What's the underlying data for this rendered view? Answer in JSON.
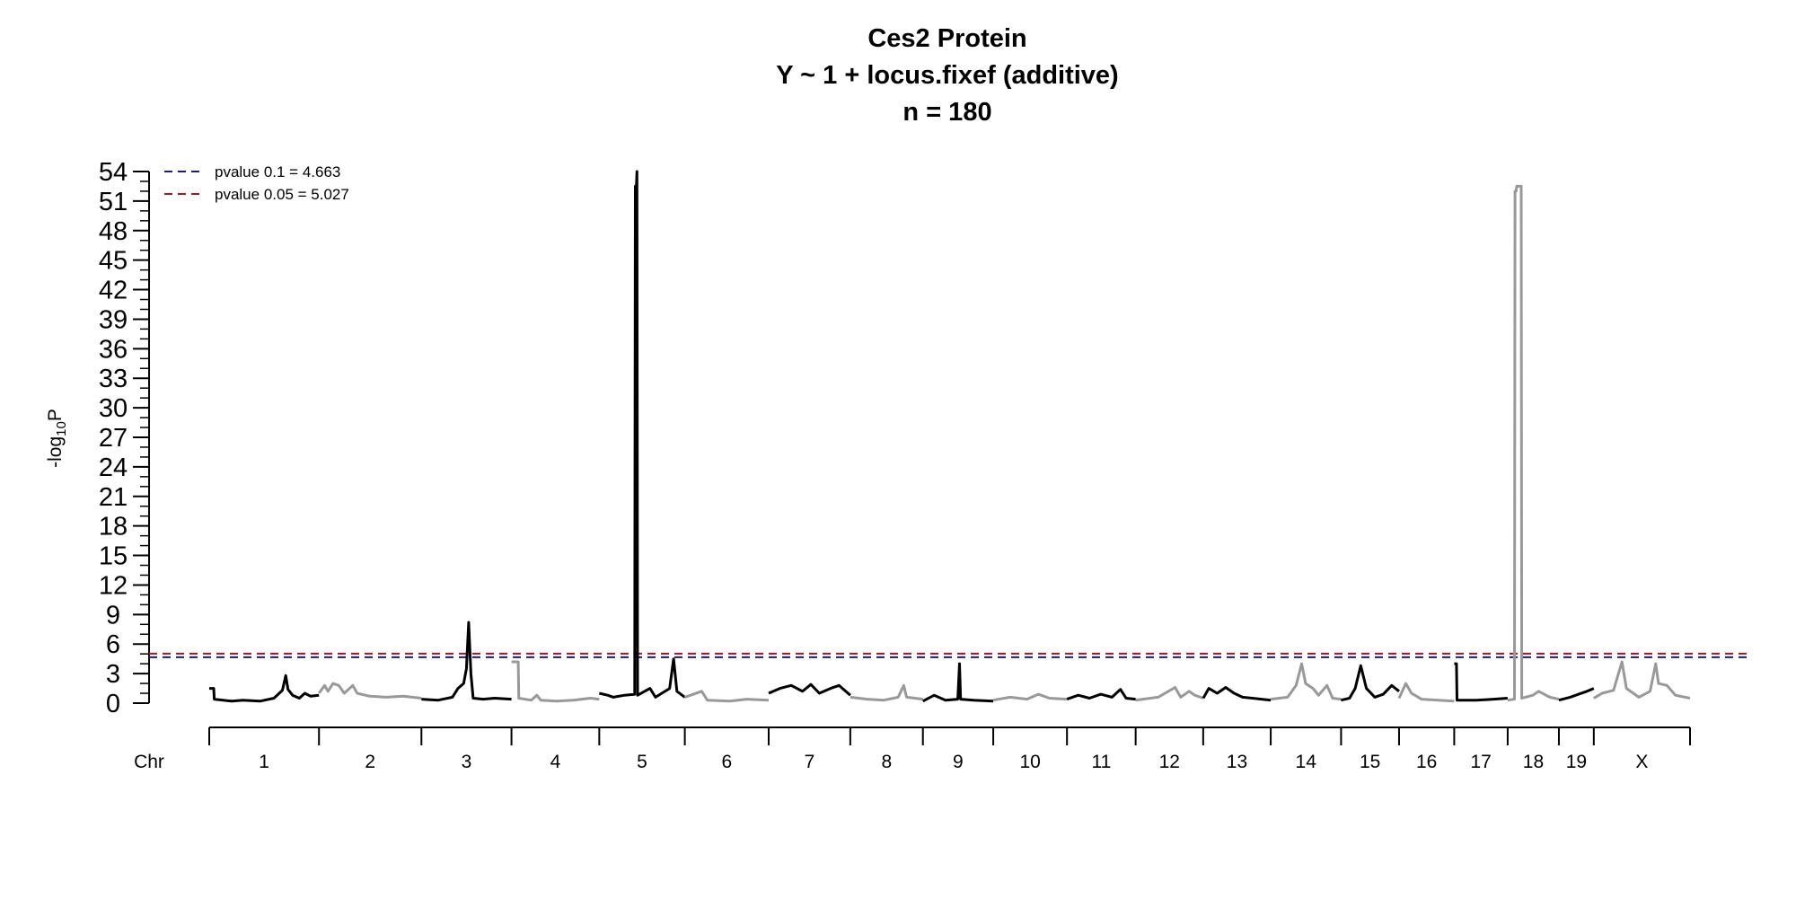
{
  "chart_data": {
    "type": "line",
    "title_lines": [
      "Ces2 Protein",
      "Y ~ 1 + locus.fixef (additive)",
      "n = 180"
    ],
    "ylabel": {
      "prefix": "-log",
      "sub": "10",
      "suffix": "P"
    },
    "xlabel": "Chr",
    "ylim": [
      0,
      54
    ],
    "yticks": [
      0,
      3,
      6,
      9,
      12,
      15,
      18,
      21,
      24,
      27,
      30,
      33,
      36,
      39,
      42,
      45,
      48,
      51,
      54
    ],
    "grid": false,
    "legend_position": "top-left",
    "thresholds": [
      {
        "label": "pvalue 0.1 = 4.663",
        "value": 4.663,
        "color": "#1a1a8c"
      },
      {
        "label": "pvalue 0.05 = 5.027",
        "value": 5.027,
        "color": "#b01020"
      }
    ],
    "colors": {
      "odd": "#000000",
      "even": "#999999"
    },
    "chromosomes": [
      {
        "name": "1",
        "start": 0,
        "end": 195,
        "profile": [
          [
            0,
            1.5
          ],
          [
            8,
            1.5
          ],
          [
            9,
            0.4
          ],
          [
            40,
            0.2
          ],
          [
            60,
            0.3
          ],
          [
            90,
            0.2
          ],
          [
            115,
            0.5
          ],
          [
            130,
            1.3
          ],
          [
            136,
            2.8
          ],
          [
            140,
            1.4
          ],
          [
            148,
            0.8
          ],
          [
            160,
            0.5
          ],
          [
            170,
            1.0
          ],
          [
            180,
            0.7
          ],
          [
            195,
            0.8
          ]
        ]
      },
      {
        "name": "2",
        "start": 195,
        "end": 377,
        "profile": [
          [
            0,
            1.0
          ],
          [
            10,
            1.8
          ],
          [
            16,
            1.2
          ],
          [
            25,
            2.0
          ],
          [
            35,
            1.8
          ],
          [
            45,
            1.0
          ],
          [
            60,
            1.8
          ],
          [
            68,
            1.0
          ],
          [
            90,
            0.7
          ],
          [
            120,
            0.6
          ],
          [
            150,
            0.7
          ],
          [
            182,
            0.5
          ]
        ]
      },
      {
        "name": "3",
        "start": 377,
        "end": 537,
        "profile": [
          [
            0,
            0.4
          ],
          [
            30,
            0.3
          ],
          [
            55,
            0.6
          ],
          [
            65,
            1.5
          ],
          [
            75,
            2.0
          ],
          [
            80,
            3.5
          ],
          [
            84,
            8.2
          ],
          [
            88,
            3.0
          ],
          [
            92,
            0.5
          ],
          [
            110,
            0.4
          ],
          [
            130,
            0.5
          ],
          [
            160,
            0.4
          ]
        ]
      },
      {
        "name": "4",
        "start": 537,
        "end": 693,
        "profile": [
          [
            0,
            4.2
          ],
          [
            12,
            4.2
          ],
          [
            13,
            0.5
          ],
          [
            35,
            0.3
          ],
          [
            45,
            0.8
          ],
          [
            52,
            0.3
          ],
          [
            80,
            0.2
          ],
          [
            110,
            0.3
          ],
          [
            140,
            0.5
          ],
          [
            156,
            0.4
          ]
        ]
      },
      {
        "name": "5",
        "start": 693,
        "end": 845,
        "profile": [
          [
            0,
            1.0
          ],
          [
            15,
            0.8
          ],
          [
            25,
            0.6
          ],
          [
            45,
            0.8
          ],
          [
            63,
            0.9
          ],
          [
            64,
            52.5
          ],
          [
            66,
            52.5
          ],
          [
            67,
            54
          ],
          [
            68,
            0.8
          ],
          [
            90,
            1.5
          ],
          [
            100,
            0.6
          ],
          [
            125,
            1.5
          ],
          [
            132,
            4.5
          ],
          [
            138,
            1.2
          ],
          [
            152,
            0.6
          ]
        ]
      },
      {
        "name": "6",
        "start": 845,
        "end": 994,
        "profile": [
          [
            0,
            0.6
          ],
          [
            30,
            1.2
          ],
          [
            40,
            0.3
          ],
          [
            80,
            0.2
          ],
          [
            110,
            0.4
          ],
          [
            149,
            0.3
          ]
        ]
      },
      {
        "name": "7",
        "start": 994,
        "end": 1139,
        "profile": [
          [
            0,
            1.0
          ],
          [
            20,
            1.5
          ],
          [
            40,
            1.8
          ],
          [
            60,
            1.2
          ],
          [
            75,
            1.9
          ],
          [
            90,
            1.0
          ],
          [
            110,
            1.5
          ],
          [
            125,
            1.8
          ],
          [
            145,
            0.8
          ]
        ]
      },
      {
        "name": "8",
        "start": 1139,
        "end": 1268,
        "profile": [
          [
            0,
            0.6
          ],
          [
            30,
            0.4
          ],
          [
            60,
            0.3
          ],
          [
            85,
            0.6
          ],
          [
            95,
            1.8
          ],
          [
            100,
            0.6
          ],
          [
            129,
            0.4
          ]
        ]
      },
      {
        "name": "9",
        "start": 1268,
        "end": 1393,
        "profile": [
          [
            0,
            0.2
          ],
          [
            20,
            0.8
          ],
          [
            40,
            0.3
          ],
          [
            62,
            0.4
          ],
          [
            65,
            4.0
          ],
          [
            67,
            0.4
          ],
          [
            90,
            0.3
          ],
          [
            125,
            0.2
          ]
        ]
      },
      {
        "name": "10",
        "start": 1393,
        "end": 1524,
        "profile": [
          [
            0,
            0.3
          ],
          [
            30,
            0.6
          ],
          [
            60,
            0.4
          ],
          [
            80,
            0.9
          ],
          [
            100,
            0.5
          ],
          [
            131,
            0.4
          ]
        ]
      },
      {
        "name": "11",
        "start": 1524,
        "end": 1646,
        "profile": [
          [
            0,
            0.4
          ],
          [
            20,
            0.8
          ],
          [
            40,
            0.5
          ],
          [
            60,
            0.9
          ],
          [
            80,
            0.6
          ],
          [
            95,
            1.4
          ],
          [
            105,
            0.5
          ],
          [
            122,
            0.4
          ]
        ]
      },
      {
        "name": "12",
        "start": 1646,
        "end": 1766,
        "profile": [
          [
            0,
            0.3
          ],
          [
            40,
            0.6
          ],
          [
            70,
            1.6
          ],
          [
            80,
            0.6
          ],
          [
            95,
            1.2
          ],
          [
            105,
            0.8
          ],
          [
            120,
            0.5
          ]
        ]
      },
      {
        "name": "13",
        "start": 1766,
        "end": 1886,
        "profile": [
          [
            0,
            0.5
          ],
          [
            10,
            1.5
          ],
          [
            25,
            1.0
          ],
          [
            40,
            1.6
          ],
          [
            55,
            1.0
          ],
          [
            70,
            0.6
          ],
          [
            120,
            0.3
          ]
        ]
      },
      {
        "name": "14",
        "start": 1886,
        "end": 2011,
        "profile": [
          [
            0,
            0.4
          ],
          [
            30,
            0.6
          ],
          [
            45,
            1.8
          ],
          [
            55,
            4.0
          ],
          [
            62,
            2.0
          ],
          [
            75,
            1.5
          ],
          [
            85,
            0.8
          ],
          [
            100,
            1.8
          ],
          [
            110,
            0.5
          ],
          [
            125,
            0.4
          ]
        ]
      },
      {
        "name": "15",
        "start": 2011,
        "end": 2114,
        "profile": [
          [
            0,
            0.3
          ],
          [
            15,
            0.5
          ],
          [
            25,
            1.5
          ],
          [
            35,
            3.8
          ],
          [
            45,
            1.5
          ],
          [
            60,
            0.6
          ],
          [
            75,
            0.9
          ],
          [
            90,
            1.8
          ],
          [
            103,
            1.2
          ]
        ]
      },
      {
        "name": "16",
        "start": 2114,
        "end": 2212,
        "profile": [
          [
            0,
            0.5
          ],
          [
            12,
            2.0
          ],
          [
            22,
            1.0
          ],
          [
            40,
            0.4
          ],
          [
            70,
            0.3
          ],
          [
            98,
            0.2
          ]
        ]
      },
      {
        "name": "17",
        "start": 2212,
        "end": 2307,
        "profile": [
          [
            0,
            4.0
          ],
          [
            4,
            4.0
          ],
          [
            5,
            0.3
          ],
          [
            40,
            0.3
          ],
          [
            70,
            0.4
          ],
          [
            95,
            0.5
          ]
        ]
      },
      {
        "name": "18",
        "start": 2307,
        "end": 2398,
        "profile": [
          [
            0,
            0.3
          ],
          [
            12,
            0.4
          ],
          [
            13,
            52.0
          ],
          [
            15,
            52.0
          ],
          [
            16,
            52.5
          ],
          [
            24,
            52.5
          ],
          [
            25,
            0.5
          ],
          [
            45,
            0.8
          ],
          [
            55,
            1.2
          ],
          [
            75,
            0.6
          ],
          [
            91,
            0.4
          ]
        ]
      },
      {
        "name": "19",
        "start": 2398,
        "end": 2460,
        "profile": [
          [
            0,
            0.3
          ],
          [
            20,
            0.6
          ],
          [
            35,
            0.9
          ],
          [
            50,
            1.2
          ],
          [
            62,
            1.5
          ]
        ]
      },
      {
        "name": "X",
        "start": 2460,
        "end": 2631,
        "profile": [
          [
            0,
            0.5
          ],
          [
            15,
            1.0
          ],
          [
            35,
            1.3
          ],
          [
            50,
            4.2
          ],
          [
            58,
            1.5
          ],
          [
            80,
            0.6
          ],
          [
            100,
            1.2
          ],
          [
            110,
            4.0
          ],
          [
            115,
            2.0
          ],
          [
            130,
            1.8
          ],
          [
            145,
            0.8
          ],
          [
            171,
            0.5
          ]
        ]
      }
    ]
  }
}
